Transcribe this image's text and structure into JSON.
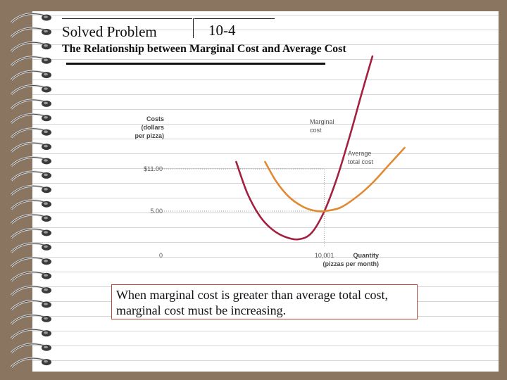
{
  "header": {
    "section_label": "Solved Problem",
    "problem_number": "10-4",
    "title": "The Relationship between Marginal Cost and Average Cost"
  },
  "callout": {
    "text": "When marginal cost is greater than average total cost, marginal cost must be increasing."
  },
  "chart_data": {
    "type": "line",
    "y_axis_label": [
      "Costs",
      "(dollars",
      "per pizza)"
    ],
    "x_axis_label": [
      "Quantity",
      "(pizzas per month)"
    ],
    "y_ticks": [
      {
        "label": "$11.00",
        "value": 11
      },
      {
        "label": "5.00",
        "value": 5
      }
    ],
    "origin_label": "0",
    "x_ticks": [
      {
        "label": "10,001",
        "value": 10001
      }
    ],
    "series": [
      {
        "name": "Marginal cost",
        "label_lines": [
          "Marginal",
          "cost"
        ],
        "color": "#a3203f",
        "x": [
          4500,
          5200,
          6000,
          6800,
          7600,
          8400,
          9200,
          10001,
          10800,
          11600,
          12300,
          13000
        ],
        "y": [
          12.0,
          7.5,
          4.2,
          2.3,
          1.3,
          1.0,
          1.9,
          5.0,
          9.8,
          15.8,
          21.5,
          27.0
        ]
      },
      {
        "name": "Average total cost",
        "label_lines": [
          "Average",
          "total cost"
        ],
        "color": "#e08a34",
        "x": [
          6300,
          7000,
          7800,
          8600,
          9300,
          10001,
          11000,
          12000,
          13000,
          14000,
          15000
        ],
        "y": [
          12.0,
          9.2,
          7.0,
          5.7,
          5.1,
          5.0,
          5.5,
          7.0,
          9.0,
          11.5,
          14.0
        ]
      }
    ],
    "guides": [
      {
        "from": "y-axis",
        "y": 11,
        "to_x": 10001
      },
      {
        "from": "y-axis",
        "y": 5,
        "to_x": 10001
      },
      {
        "x": 10001,
        "y_from": 0,
        "y_to": 11
      }
    ],
    "xlim": [
      0,
      17000
    ],
    "ylim": [
      0,
      28
    ],
    "grid": false
  }
}
